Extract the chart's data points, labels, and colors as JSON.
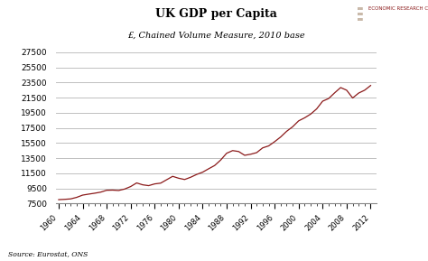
{
  "title": "UK GDP per Capita",
  "subtitle": "£, Chained Volume Measure, 2010 base",
  "source": "Source: Eurostat, ONS",
  "legend_label": "ECONOMIC RESEARCH COUNCIL",
  "line_color": "#8B1A1A",
  "background_color": "#ffffff",
  "grid_color": "#c0c0c0",
  "ylim": [
    7500,
    27500
  ],
  "yticks": [
    7500,
    9500,
    11500,
    13500,
    15500,
    17500,
    19500,
    21500,
    23500,
    25500,
    27500
  ],
  "xlim": [
    1959.5,
    2013
  ],
  "xticks": [
    1960,
    1964,
    1968,
    1972,
    1976,
    1980,
    1984,
    1988,
    1992,
    1996,
    2000,
    2004,
    2008,
    2012
  ],
  "years": [
    1960,
    1961,
    1962,
    1963,
    1964,
    1965,
    1966,
    1967,
    1968,
    1969,
    1970,
    1971,
    1972,
    1973,
    1974,
    1975,
    1976,
    1977,
    1978,
    1979,
    1980,
    1981,
    1982,
    1983,
    1984,
    1985,
    1986,
    1987,
    1988,
    1989,
    1990,
    1991,
    1992,
    1993,
    1994,
    1995,
    1996,
    1997,
    1998,
    1999,
    2000,
    2001,
    2002,
    2003,
    2004,
    2005,
    2006,
    2007,
    2008,
    2009,
    2010,
    2011,
    2012
  ],
  "values": [
    8020,
    8060,
    8120,
    8320,
    8620,
    8750,
    8870,
    9010,
    9260,
    9280,
    9230,
    9420,
    9750,
    10230,
    9980,
    9870,
    10100,
    10200,
    10650,
    11100,
    10850,
    10680,
    10980,
    11350,
    11650,
    12100,
    12530,
    13250,
    14150,
    14500,
    14380,
    13880,
    14020,
    14230,
    14860,
    15120,
    15680,
    16300,
    17050,
    17650,
    18430,
    18830,
    19320,
    20010,
    21030,
    21380,
    22130,
    22830,
    22480,
    21450,
    22100,
    22480,
    23100
  ]
}
